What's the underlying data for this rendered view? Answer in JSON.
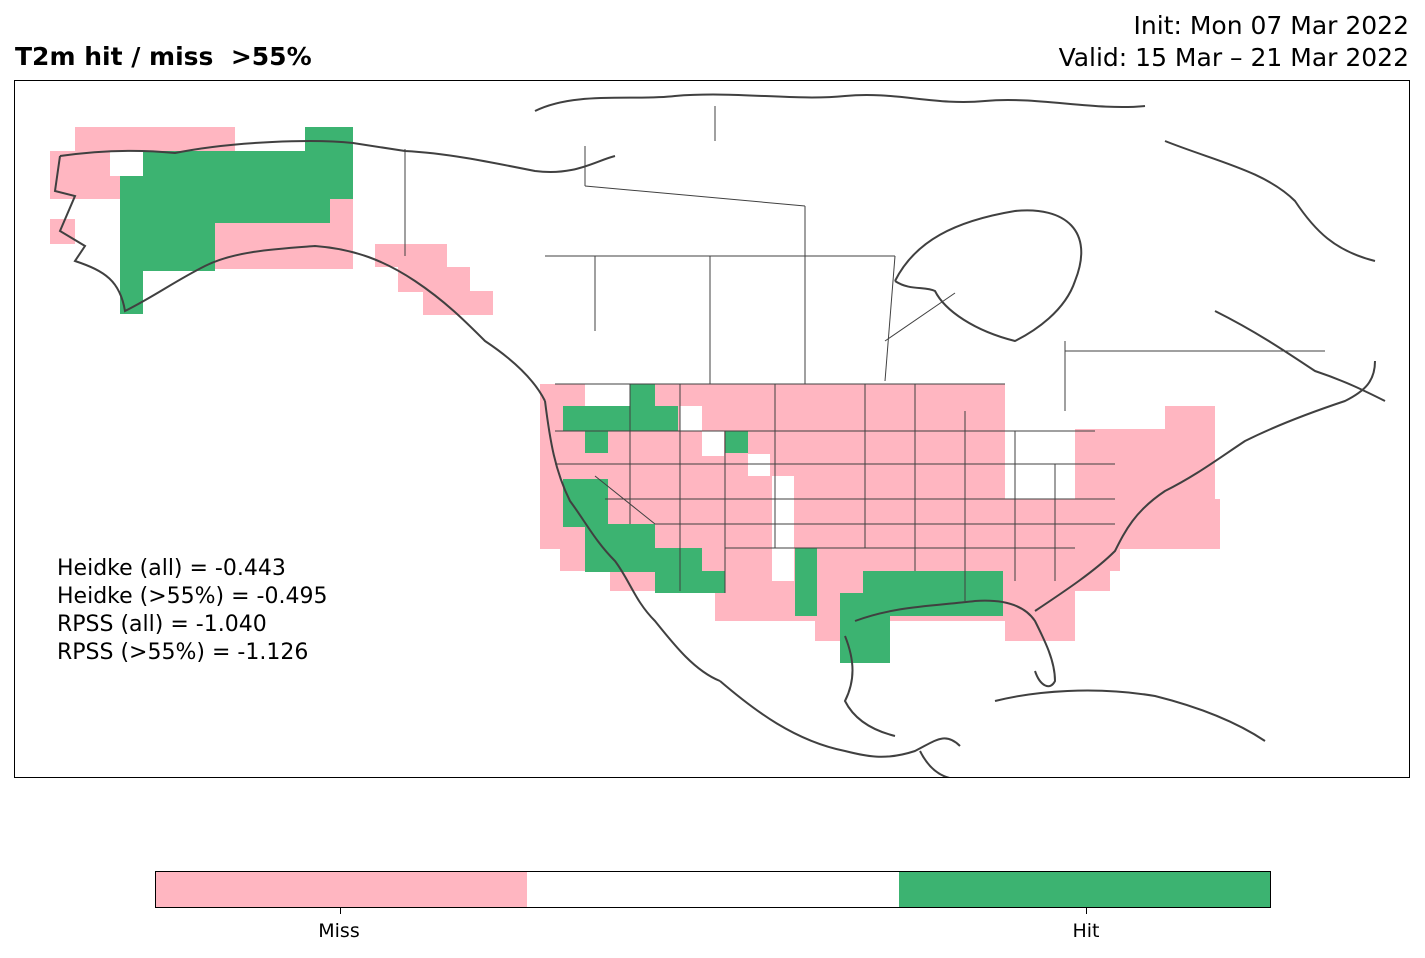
{
  "title": {
    "left": "T2m hit / miss  >55%",
    "init": "Init: Mon 07 Mar 2022",
    "valid": "Valid: 15 Mar – 21 Mar 2022"
  },
  "stats": [
    "Heidke (all) = -0.443",
    "Heidke (>55%) = -0.495",
    "RPSS (all) = -1.040",
    "RPSS (>55%) = -1.126"
  ],
  "colorbar": {
    "segments": [
      {
        "name": "miss",
        "color": "#ffb6c1"
      },
      {
        "name": "neutral",
        "color": "#ffffff"
      },
      {
        "name": "hit",
        "color": "#3cb371"
      }
    ],
    "ticks": [
      {
        "label": "Miss"
      },
      {
        "label": "Hit"
      }
    ]
  },
  "map": {
    "region": "North America",
    "land_outline_color": "#404040",
    "categories": {
      "miss": "#ffb6c1",
      "hit": "#3cb371"
    },
    "grid_cells": {
      "note_units": "cells on a 2-degree lon/lat grid",
      "miss": [],
      "hit": []
    }
  }
}
